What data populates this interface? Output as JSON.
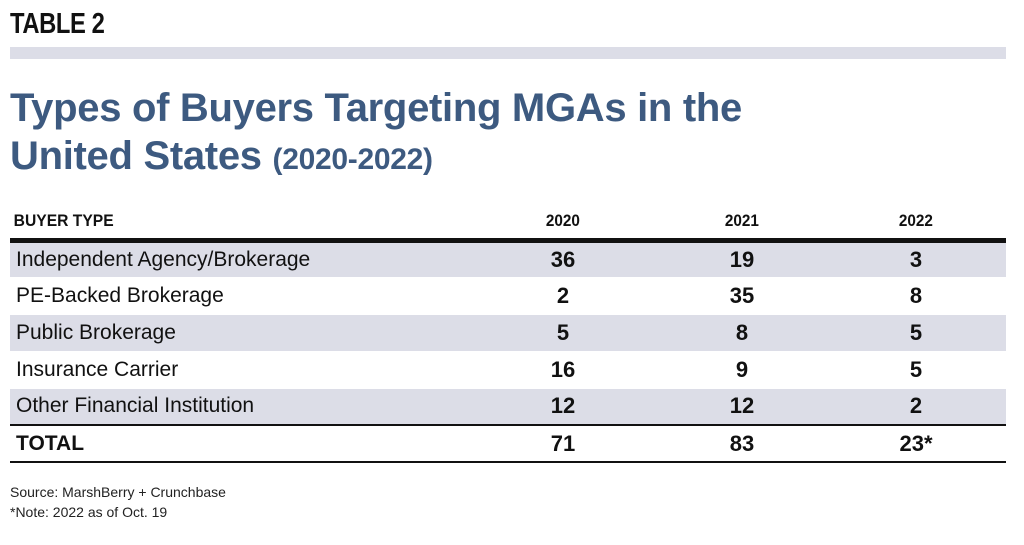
{
  "label": "TABLE 2",
  "title": {
    "main_line1": "Types of Buyers Targeting MGAs in the",
    "main_line2": "United States",
    "years": "(2020-2022)"
  },
  "table": {
    "headers": [
      "BUYER TYPE",
      "2020",
      "2021",
      "2022"
    ],
    "rows": [
      {
        "type": "Independent Agency/Brokerage",
        "y2020": "36",
        "y2021": "19",
        "y2022": "3"
      },
      {
        "type": "PE-Backed Brokerage",
        "y2020": "2",
        "y2021": "35",
        "y2022": "8"
      },
      {
        "type": "Public Brokerage",
        "y2020": "5",
        "y2021": "8",
        "y2022": "5"
      },
      {
        "type": "Insurance Carrier",
        "y2020": "16",
        "y2021": "9",
        "y2022": "5"
      },
      {
        "type": "Other Financial Institution",
        "y2020": "12",
        "y2021": "12",
        "y2022": "2"
      }
    ],
    "total": {
      "type": "TOTAL",
      "y2020": "71",
      "y2021": "83",
      "y2022": "23*"
    }
  },
  "footnotes": {
    "source": "Source: MarshBerry + Crunchbase",
    "note": "*Note: 2022 as of Oct. 19"
  },
  "colors": {
    "title": "#3d5a80",
    "row_shade": "#dcdde7"
  }
}
